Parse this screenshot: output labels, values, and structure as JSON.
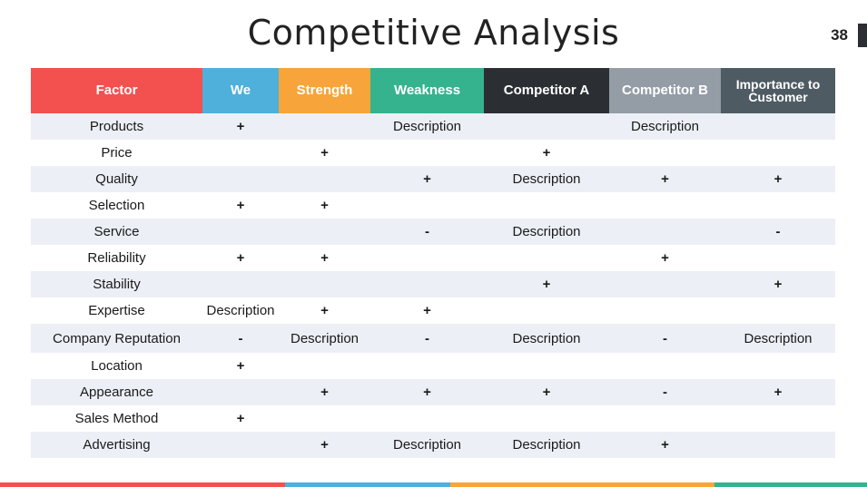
{
  "slide": {
    "title": "Competitive Analysis",
    "page_number": "38"
  },
  "table": {
    "columns": [
      {
        "label": "Factor",
        "color": "#f2514f"
      },
      {
        "label": "We",
        "color": "#4fb0dc"
      },
      {
        "label": "Strength",
        "color": "#f7a53a"
      },
      {
        "label": "Weakness",
        "color": "#35b38f"
      },
      {
        "label": "Competitor A",
        "color": "#2b2f33"
      },
      {
        "label": "Competitor B",
        "color": "#949da5"
      },
      {
        "label": "Importance to Customer",
        "color": "#4f5b63"
      }
    ],
    "rows": [
      [
        "Products",
        "+",
        "",
        "Description",
        "",
        "Description",
        ""
      ],
      [
        "Price",
        "",
        "+",
        "",
        "+",
        "",
        ""
      ],
      [
        "Quality",
        "",
        "",
        "+",
        "Description",
        "+",
        "+"
      ],
      [
        "Selection",
        "+",
        "+",
        "",
        "",
        "",
        ""
      ],
      [
        "Service",
        "",
        "",
        "-",
        "Description",
        "",
        "-"
      ],
      [
        "Reliability",
        "+",
        "+",
        "",
        "",
        "+",
        ""
      ],
      [
        "Stability",
        "",
        "",
        "",
        "+",
        "",
        "+"
      ],
      [
        "Expertise",
        "Description",
        "+",
        "+",
        "",
        "",
        ""
      ],
      [
        "Company Reputation",
        "-",
        "Description",
        "-",
        "Description",
        "-",
        "Description"
      ],
      [
        "Location",
        "+",
        "",
        "",
        "",
        "",
        ""
      ],
      [
        "Appearance",
        "",
        "+",
        "+",
        "+",
        "-",
        "+"
      ],
      [
        "Sales Method",
        "+",
        "",
        "",
        "",
        "",
        ""
      ],
      [
        "Advertising",
        "",
        "+",
        "Description",
        "Description",
        "+",
        ""
      ]
    ]
  },
  "footer_stripe_colors": [
    "#f2514f",
    "#4fb0dc",
    "#f7a53a",
    "#35b38f"
  ]
}
